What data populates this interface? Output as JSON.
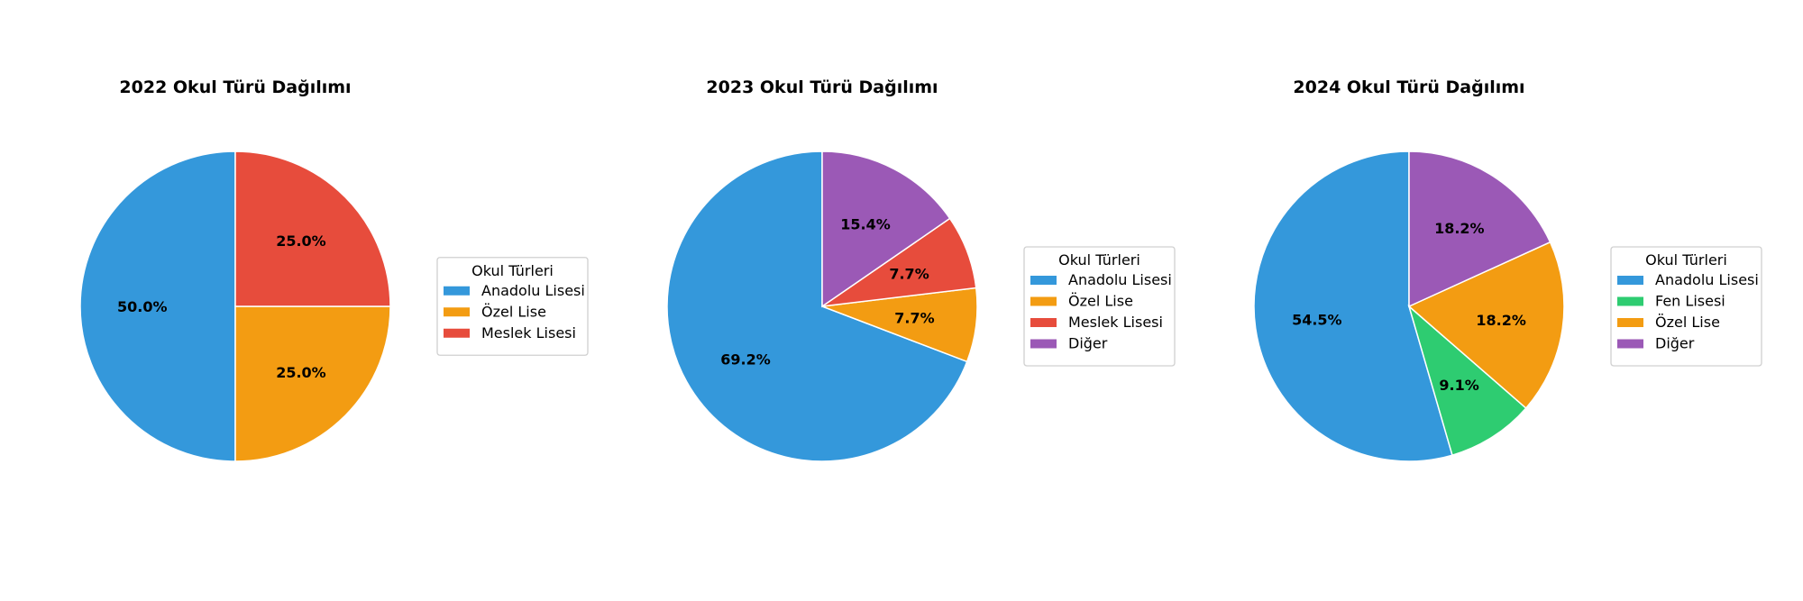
{
  "chart_data": [
    {
      "type": "pie",
      "title": "2022 Okul Türü Dağılımı",
      "categories": [
        "Anadolu Lisesi",
        "Özel Lise",
        "Meslek Lisesi"
      ],
      "values": [
        50.0,
        25.0,
        25.0
      ],
      "labels": [
        "50.0%",
        "25.0%",
        "25.0%"
      ],
      "colors": [
        "#3498db",
        "#f39c12",
        "#e74c3c"
      ],
      "legend_title": "Okul Türleri",
      "legend_placement": "right"
    },
    {
      "type": "pie",
      "title": "2023 Okul Türü Dağılımı",
      "categories": [
        "Anadolu Lisesi",
        "Özel Lise",
        "Meslek Lisesi",
        "Diğer"
      ],
      "values": [
        69.2,
        7.7,
        7.7,
        15.4
      ],
      "labels": [
        "69.2%",
        "7.7%",
        "7.7%",
        "15.4%"
      ],
      "colors": [
        "#3498db",
        "#f39c12",
        "#e74c3c",
        "#9b59b6"
      ],
      "legend_title": "Okul Türleri",
      "legend_placement": "right"
    },
    {
      "type": "pie",
      "title": "2024 Okul Türü Dağılımı",
      "categories": [
        "Anadolu Lisesi",
        "Fen Lisesi",
        "Özel Lise",
        "Diğer"
      ],
      "values": [
        54.5,
        9.1,
        18.2,
        18.2
      ],
      "labels": [
        "54.5%",
        "9.1%",
        "18.2%",
        "18.2%"
      ],
      "colors": [
        "#3498db",
        "#2ecc71",
        "#f39c12",
        "#9b59b6"
      ],
      "legend_title": "Okul Türleri",
      "legend_placement": "right"
    }
  ]
}
